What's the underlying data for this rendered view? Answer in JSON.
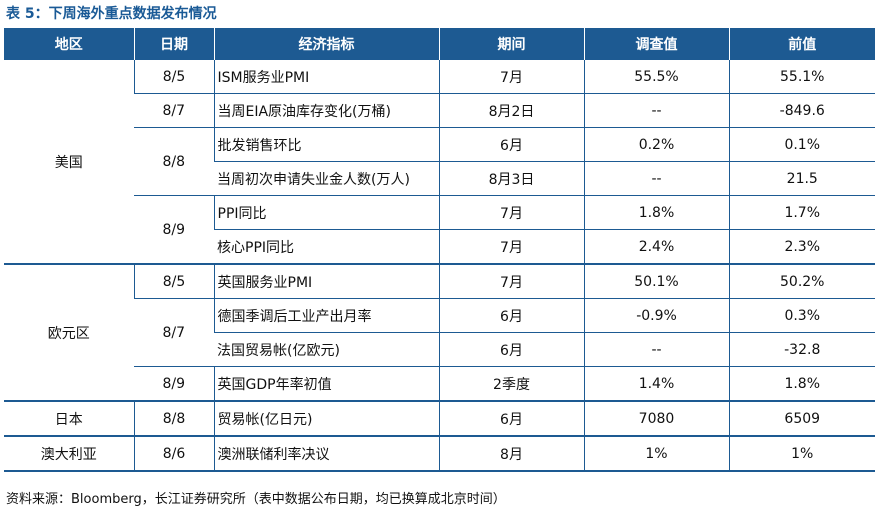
{
  "caption": "表 5：下周海外重点数据发布情况",
  "headers": [
    "地区",
    "日期",
    "经济指标",
    "期间",
    "调查值",
    "前值"
  ],
  "regions": {
    "us": "美国",
    "eu": "欧元区",
    "jp": "日本",
    "au": "澳大利亚"
  },
  "rows": [
    {
      "date": "8/5",
      "indicator": "ISM服务业PMI",
      "period": "7月",
      "survey": "55.5%",
      "prior": "55.1%"
    },
    {
      "date": "8/7",
      "indicator": "当周EIA原油库存变化(万桶)",
      "period": "8月2日",
      "survey": "--",
      "prior": "-849.6"
    },
    {
      "date": "8/8",
      "indicator": "批发销售环比",
      "period": "6月",
      "survey": "0.2%",
      "prior": "0.1%"
    },
    {
      "date": "",
      "indicator": "当周初次申请失业金人数(万人)",
      "period": "8月3日",
      "survey": "--",
      "prior": "21.5"
    },
    {
      "date": "8/9",
      "indicator": "PPI同比",
      "period": "7月",
      "survey": "1.8%",
      "prior": "1.7%"
    },
    {
      "date": "",
      "indicator": "核心PPI同比",
      "period": "7月",
      "survey": "2.4%",
      "prior": "2.3%"
    },
    {
      "date": "8/5",
      "indicator": "英国服务业PMI",
      "period": "7月",
      "survey": "50.1%",
      "prior": "50.2%"
    },
    {
      "date": "8/7",
      "indicator": "德国季调后工业产出月率",
      "period": "6月",
      "survey": "-0.9%",
      "prior": "0.3%"
    },
    {
      "date": "",
      "indicator": "法国贸易帐(亿欧元)",
      "period": "6月",
      "survey": "--",
      "prior": "-32.8"
    },
    {
      "date": "8/9",
      "indicator": "英国GDP年率初值",
      "period": "2季度",
      "survey": "1.4%",
      "prior": "1.8%"
    },
    {
      "date": "8/8",
      "indicator": "贸易帐(亿日元)",
      "period": "6月",
      "survey": "7080",
      "prior": "6509"
    },
    {
      "date": "8/6",
      "indicator": "澳洲联储利率决议",
      "period": "8月",
      "survey": "1%",
      "prior": "1%"
    }
  ],
  "source": "资料来源：Bloomberg，长江证券研究所（表中数据公布日期，均已换算成北京时间）"
}
